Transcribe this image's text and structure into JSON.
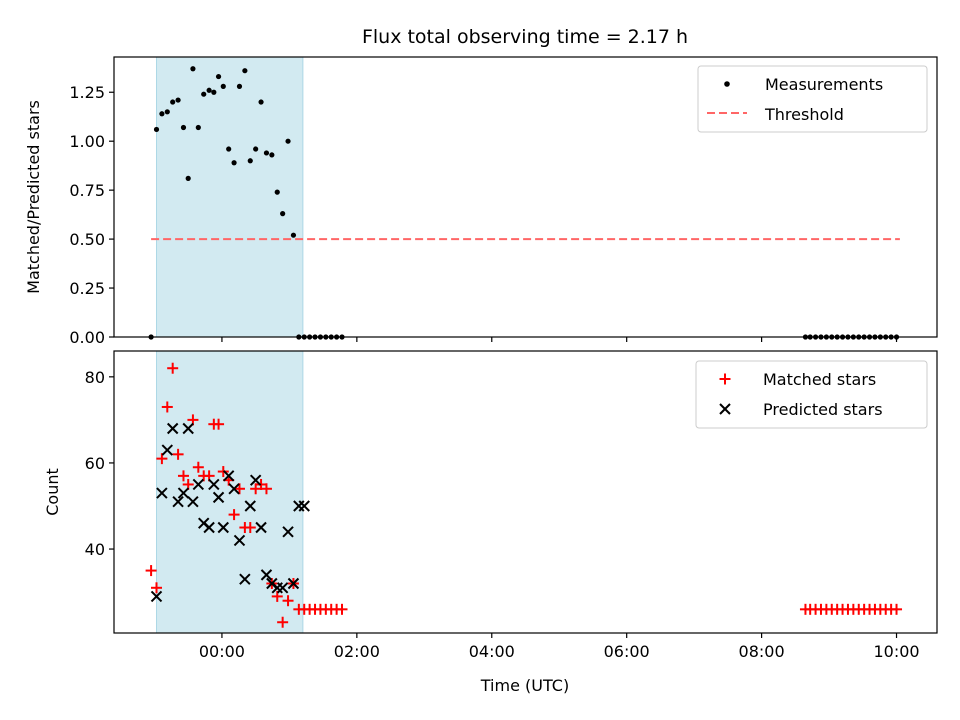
{
  "colors": {
    "shade": "#add8e6",
    "matched": "#ff0000",
    "predicted": "#000000",
    "threshold": "#ff6666",
    "measurement": "#000000"
  },
  "chart_data": [
    {
      "type": "scatter",
      "title": "Flux total observing time = 2.17 h",
      "xlabel": "",
      "ylabel": "Matched/Predicted stars",
      "xlim": [
        -1.6,
        10.6
      ],
      "ylim": [
        0.0,
        1.43
      ],
      "yticks": [
        0.0,
        0.25,
        0.5,
        0.75,
        1.0,
        1.25
      ],
      "ytick_labels": [
        "0.00",
        "0.25",
        "0.50",
        "0.75",
        "1.00",
        "1.25"
      ],
      "xticks": [
        0,
        2,
        4,
        6,
        8,
        10
      ],
      "shaded_span": [
        -0.97,
        1.2
      ],
      "threshold": {
        "value": 0.5,
        "x_range": [
          -1.05,
          10.05
        ]
      },
      "legend": [
        "Measurements",
        "Threshold"
      ],
      "legend_position": "top-right",
      "series": [
        {
          "name": "Measurements",
          "x": [
            -1.05,
            -0.97,
            -0.89,
            -0.81,
            -0.73,
            -0.65,
            -0.57,
            -0.5,
            -0.43,
            -0.35,
            -0.27,
            -0.19,
            -0.12,
            -0.05,
            0.02,
            0.1,
            0.18,
            0.26,
            0.34,
            0.42,
            0.5,
            0.58,
            0.66,
            0.74,
            0.82,
            0.9,
            0.98,
            1.06,
            1.14,
            1.22,
            1.3,
            1.38,
            1.46,
            1.54,
            1.62,
            1.7,
            1.78,
            8.65,
            8.72,
            8.8,
            8.88,
            8.96,
            9.04,
            9.12,
            9.2,
            9.28,
            9.36,
            9.44,
            9.52,
            9.6,
            9.68,
            9.76,
            9.84,
            9.92,
            10.0
          ],
          "y": [
            0.0,
            1.06,
            1.14,
            1.15,
            1.2,
            1.21,
            1.07,
            0.81,
            1.37,
            1.07,
            1.24,
            1.26,
            1.25,
            1.33,
            1.28,
            0.96,
            0.89,
            1.28,
            1.36,
            0.9,
            0.96,
            1.2,
            0.94,
            0.93,
            0.74,
            0.63,
            1.0,
            0.52,
            0.0,
            0.0,
            0.0,
            0.0,
            0.0,
            0.0,
            0.0,
            0.0,
            0.0,
            0.0,
            0.0,
            0.0,
            0.0,
            0.0,
            0.0,
            0.0,
            0.0,
            0.0,
            0.0,
            0.0,
            0.0,
            0.0,
            0.0,
            0.0,
            0.0,
            0.0,
            0.0
          ]
        }
      ]
    },
    {
      "type": "scatter",
      "title": "",
      "xlabel": "Time (UTC)",
      "ylabel": "Count",
      "xlim": [
        -1.6,
        10.6
      ],
      "ylim": [
        20.5,
        86
      ],
      "yticks": [
        40,
        60,
        80
      ],
      "ytick_labels": [
        "40",
        "60",
        "80"
      ],
      "xticks": [
        0,
        2,
        4,
        6,
        8,
        10
      ],
      "xtick_labels": [
        "00:00",
        "02:00",
        "04:00",
        "06:00",
        "08:00",
        "10:00"
      ],
      "shaded_span": [
        -0.97,
        1.2
      ],
      "legend": [
        "Matched stars",
        "Predicted stars"
      ],
      "legend_position": "top-right",
      "series": [
        {
          "name": "Matched stars",
          "x": [
            -1.05,
            -0.97,
            -0.89,
            -0.81,
            -0.73,
            -0.65,
            -0.57,
            -0.5,
            -0.43,
            -0.35,
            -0.27,
            -0.19,
            -0.12,
            -0.05,
            0.02,
            0.1,
            0.18,
            0.26,
            0.34,
            0.42,
            0.5,
            0.58,
            0.66,
            0.74,
            0.82,
            0.9,
            0.98,
            1.06,
            1.14,
            1.22,
            1.3,
            1.38,
            1.46,
            1.54,
            1.62,
            1.7,
            1.78,
            8.65,
            8.72,
            8.8,
            8.88,
            8.96,
            9.04,
            9.12,
            9.2,
            9.28,
            9.36,
            9.44,
            9.52,
            9.6,
            9.68,
            9.76,
            9.84,
            9.92,
            10.0
          ],
          "y": [
            35,
            31,
            61,
            73,
            82,
            62,
            57,
            55,
            70,
            59,
            57,
            57,
            69,
            69,
            58,
            56,
            48,
            54,
            45,
            45,
            54,
            55,
            54,
            32,
            29,
            23,
            28,
            32,
            26,
            26,
            26,
            26,
            26,
            26,
            26,
            26,
            26,
            26,
            26,
            26,
            26,
            26,
            26,
            26,
            26,
            26,
            26,
            26,
            26,
            26,
            26,
            26,
            26,
            26,
            26
          ]
        },
        {
          "name": "Predicted stars",
          "x": [
            -0.97,
            -0.89,
            -0.81,
            -0.73,
            -0.65,
            -0.57,
            -0.5,
            -0.43,
            -0.35,
            -0.27,
            -0.19,
            -0.12,
            -0.05,
            0.02,
            0.1,
            0.18,
            0.26,
            0.34,
            0.42,
            0.5,
            0.58,
            0.66,
            0.74,
            0.82,
            0.9,
            0.98,
            1.06,
            1.14,
            1.22
          ],
          "y": [
            29,
            53,
            63,
            68,
            51,
            53,
            68,
            51,
            55,
            46,
            45,
            55,
            52,
            45,
            57,
            54,
            42,
            33,
            50,
            56,
            45,
            34,
            32,
            31,
            31,
            44,
            32,
            50,
            50
          ]
        }
      ]
    }
  ]
}
